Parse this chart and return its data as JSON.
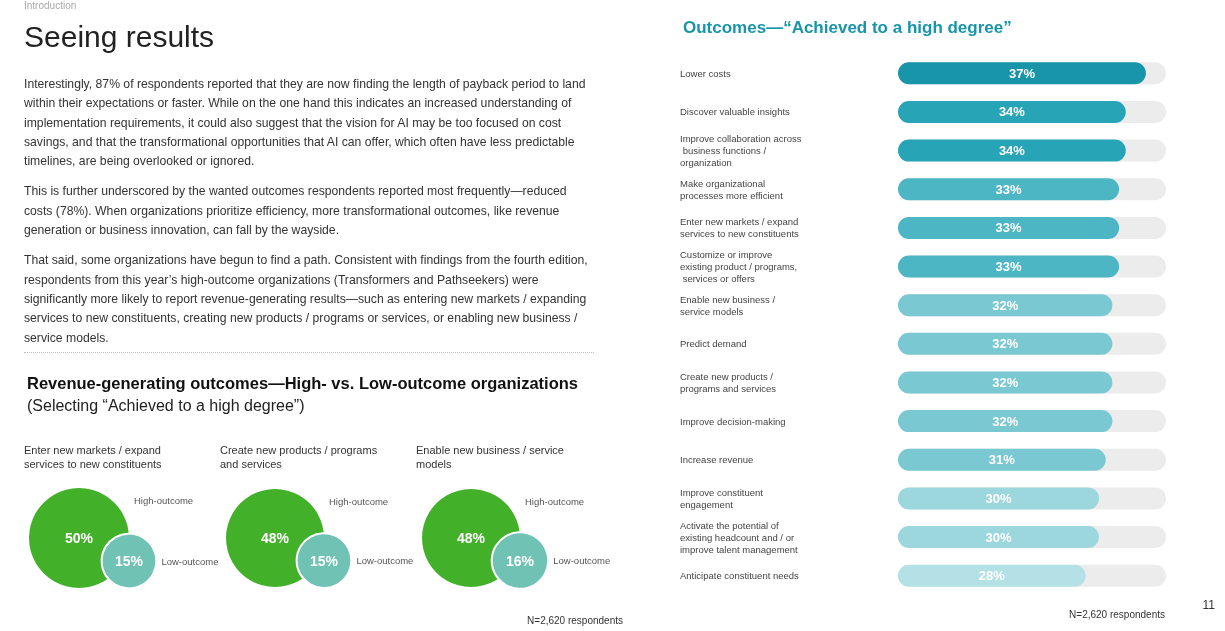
{
  "chart_data": [
    {
      "type": "other",
      "subtitle": "Introduction",
      "title": "Seeing results",
      "annotations": [
        "Interestingly, 87% of respondents reported that they are now finding the length of payback period to land within their expectations or faster. While on the one hand this indicates an increased understanding of implementation requirements, it could also suggest that the vision for AI may be too focused on cost savings, and that the transformational opportunities that AI can offer, which often have less predictable timelines, are being overlooked or ignored.",
        "This is further underscored by the wanted outcomes respondents reported most frequently—reduced costs (78%). When organizations prioritize efficiency, more transformational outcomes, like revenue generation or business innovation, can fall by the wayside.",
        "That said, some organizations have begun to find a path. Consistent with findings from the fourth edition, respondents from this year’s high-outcome organizations (Transformers and Pathseekers) were significantly more likely to report revenue-generating results—such as entering new markets / expanding services to new constituents, creating new products / programs or services, or enabling new business / service models."
      ]
    },
    {
      "type": "other",
      "title": "Revenue-generating outcomes—High- vs. Low-outcome organizations",
      "subtitle": "(Selecting “Achieved to a high degree”)",
      "categories": [
        "Enter new markets / expand services to new constituents",
        "Create new products / programs and services",
        "Enable new business / service models"
      ],
      "series": [
        {
          "name": "High-outcome",
          "color": "#43b02a",
          "values": [
            50,
            48,
            48
          ],
          "value_labels": [
            "50%",
            "48%",
            "48%"
          ]
        },
        {
          "name": "Low-outcome",
          "color": "#6fc2b4",
          "values": [
            15,
            15,
            16
          ],
          "value_labels": [
            "15%",
            "15%",
            "16%"
          ]
        }
      ],
      "annotations": [
        "N=2,620 respondents"
      ]
    },
    {
      "type": "bar",
      "orientation": "horizontal",
      "title": "Outcomes—“Achieved to a high degree”",
      "categories": [
        "Lower costs",
        "Discover valuable insights",
        "Improve collaboration across business functions / organization",
        "Make organizational processes more efficient",
        "Enter new markets / expand services to new constituents",
        "Customize or improve existing product / programs, services or offers",
        "Enable new business / service models",
        "Predict demand",
        "Create new products / programs and services",
        "Improve decision-making",
        "Increase revenue",
        "Improve constituent engagement",
        "Activate the potential of existing headcount and / or improve talent management",
        "Anticipate constituent needs"
      ],
      "values": [
        37,
        34,
        34,
        33,
        33,
        33,
        32,
        32,
        32,
        32,
        31,
        30,
        30,
        28
      ],
      "colors": [
        "#1895a9",
        "#27a5b7",
        "#27a5b7",
        "#4db6c4",
        "#4db6c4",
        "#4db6c4",
        "#7ac8d2",
        "#7ac8d2",
        "#7ac8d2",
        "#7ac8d2",
        "#7ac8d2",
        "#9dd7de",
        "#9dd7de",
        "#b3e1e5"
      ],
      "value_labels": [
        "37%",
        "34%",
        "34%",
        "33%",
        "33%",
        "33%",
        "32%",
        "32%",
        "32%",
        "32%",
        "31%",
        "30%",
        "30%",
        "28%"
      ],
      "annotations": [
        "N=2,620 respondents",
        "11"
      ]
    }
  ]
}
